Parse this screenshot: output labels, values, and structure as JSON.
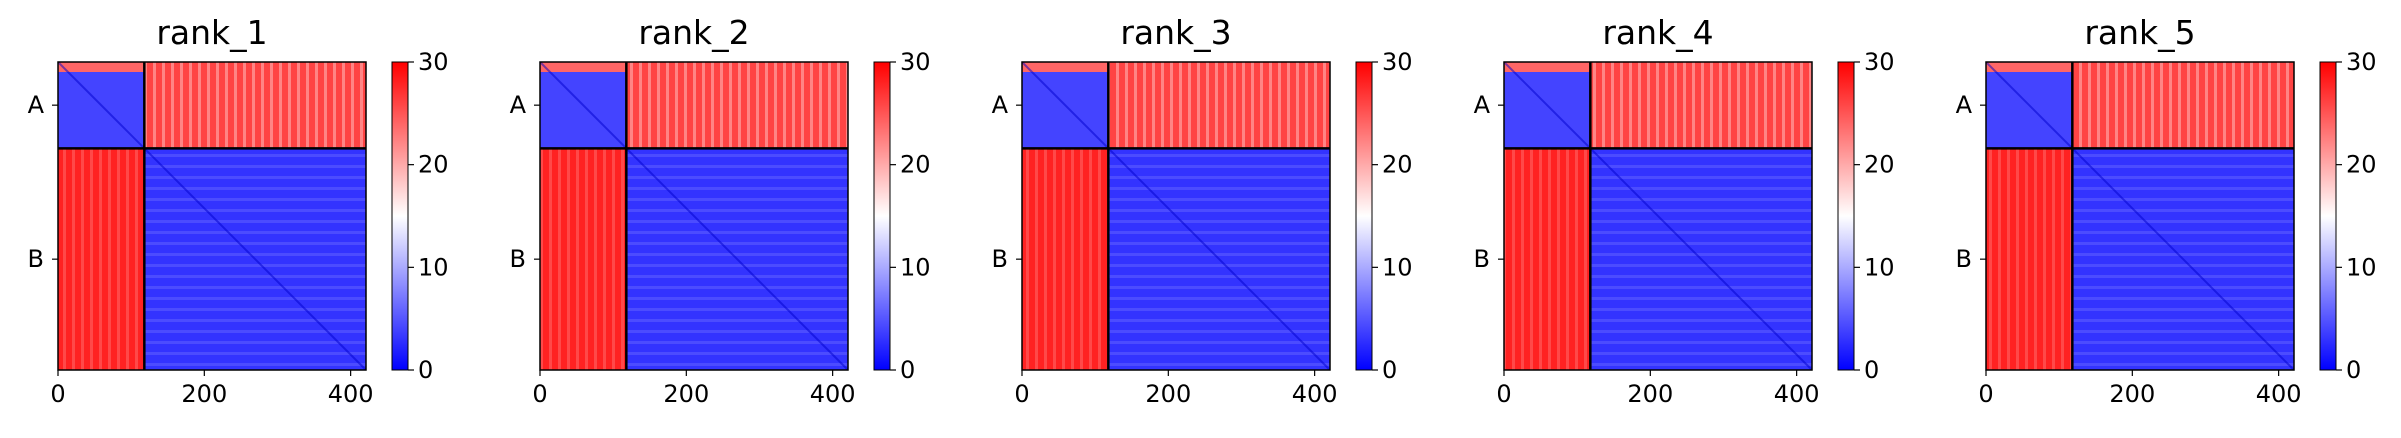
{
  "chart_data": {
    "type": "heatmap",
    "colormap": [
      "#0000ff",
      "#ffffff",
      "#ff0000"
    ],
    "vmin": 0,
    "vmax": 30,
    "n_residues": 421,
    "chain_boundary": 118,
    "chain_labels": [
      "A",
      "B"
    ],
    "x_ticks": [
      0,
      200,
      400
    ],
    "colorbar_ticks": [
      0,
      10,
      20,
      30
    ],
    "block_levels": {
      "A_A": 4,
      "A_B": 26,
      "B_A": 28,
      "B_B": 3
    },
    "panels": [
      {
        "title": "rank_1"
      },
      {
        "title": "rank_2"
      },
      {
        "title": "rank_3"
      },
      {
        "title": "rank_4"
      },
      {
        "title": "rank_5"
      }
    ]
  }
}
